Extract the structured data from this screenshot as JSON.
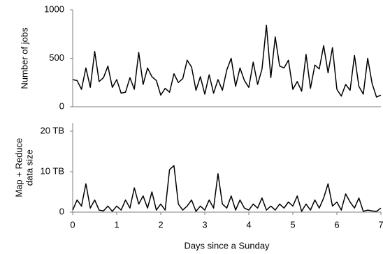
{
  "chart_data": [
    {
      "type": "line",
      "ylabel": "Number of jobs",
      "color": "#000000",
      "x": [
        0,
        0.1,
        0.2,
        0.3,
        0.4,
        0.5,
        0.6,
        0.7,
        0.8,
        0.9,
        1,
        1.1,
        1.2,
        1.3,
        1.4,
        1.5,
        1.6,
        1.7,
        1.8,
        1.9,
        2,
        2.1,
        2.2,
        2.3,
        2.4,
        2.5,
        2.6,
        2.7,
        2.8,
        2.9,
        3,
        3.1,
        3.2,
        3.3,
        3.4,
        3.5,
        3.6,
        3.7,
        3.8,
        3.9,
        4,
        4.1,
        4.2,
        4.3,
        4.4,
        4.5,
        4.6,
        4.7,
        4.8,
        4.9,
        5,
        5.1,
        5.2,
        5.3,
        5.4,
        5.5,
        5.6,
        5.7,
        5.8,
        5.9,
        6,
        6.1,
        6.2,
        6.3,
        6.4,
        6.5,
        6.6,
        6.7,
        6.8,
        6.9,
        7
      ],
      "values": [
        280,
        270,
        180,
        400,
        200,
        570,
        260,
        300,
        420,
        200,
        280,
        140,
        150,
        300,
        180,
        560,
        230,
        400,
        310,
        270,
        120,
        190,
        150,
        340,
        250,
        290,
        480,
        410,
        170,
        310,
        130,
        330,
        140,
        280,
        170,
        380,
        500,
        210,
        400,
        270,
        200,
        460,
        230,
        390,
        840,
        300,
        720,
        420,
        400,
        480,
        180,
        260,
        160,
        540,
        190,
        430,
        390,
        630,
        350,
        610,
        180,
        110,
        230,
        170,
        530,
        210,
        130,
        500,
        240,
        100,
        120
      ],
      "xlim": [
        0,
        7
      ],
      "ylim": [
        0,
        1000
      ],
      "yticks": [
        0,
        500,
        1000
      ]
    },
    {
      "type": "line",
      "ylabel": [
        "Map + Reduce",
        "data size"
      ],
      "xlabel": "Days since a Sunday",
      "color": "#000000",
      "x": [
        0,
        0.1,
        0.2,
        0.3,
        0.4,
        0.5,
        0.6,
        0.7,
        0.8,
        0.9,
        1,
        1.1,
        1.2,
        1.3,
        1.4,
        1.5,
        1.6,
        1.7,
        1.8,
        1.9,
        2,
        2.1,
        2.2,
        2.3,
        2.4,
        2.5,
        2.6,
        2.7,
        2.8,
        2.9,
        3,
        3.1,
        3.2,
        3.3,
        3.4,
        3.5,
        3.6,
        3.7,
        3.8,
        3.9,
        4,
        4.1,
        4.2,
        4.3,
        4.4,
        4.5,
        4.6,
        4.7,
        4.8,
        4.9,
        5,
        5.1,
        5.2,
        5.3,
        5.4,
        5.5,
        5.6,
        5.7,
        5.8,
        5.9,
        6,
        6.1,
        6.2,
        6.3,
        6.4,
        6.5,
        6.6,
        6.7,
        6.8,
        6.9,
        7
      ],
      "values": [
        0.5,
        3,
        1.5,
        7,
        1,
        3,
        0.5,
        0.3,
        1.5,
        0.2,
        1.5,
        0.5,
        3,
        1,
        6,
        2,
        4,
        1,
        5,
        0.5,
        2,
        0.5,
        10.5,
        11.5,
        2,
        0.5,
        1.5,
        3,
        0.2,
        1.5,
        0.5,
        3,
        1,
        9.5,
        2,
        1,
        4,
        0.5,
        3,
        1,
        0.5,
        2,
        1,
        3.5,
        0.5,
        1.5,
        0.5,
        2,
        1,
        2.5,
        1.5,
        4,
        0.2,
        2,
        0.5,
        3,
        1,
        3.5,
        7,
        1.5,
        2.5,
        0.5,
        4.5,
        2.5,
        1,
        3.5,
        0.2,
        0.5,
        0.3,
        0.2,
        1
      ],
      "xlim": [
        0,
        7
      ],
      "ylim": [
        0,
        22
      ],
      "xticks": [
        0,
        1,
        2,
        3,
        4,
        5,
        6,
        7
      ],
      "yticks": [
        0,
        {
          "value": 10,
          "label": "10 TB"
        },
        {
          "value": 20,
          "label": "20 TB"
        }
      ]
    }
  ]
}
